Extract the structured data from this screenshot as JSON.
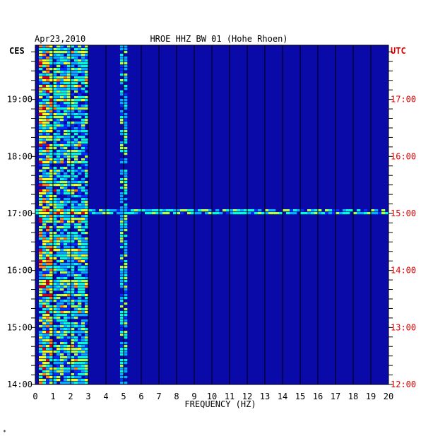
{
  "chart_data": {
    "type": "heatmap",
    "header_date": "Apr23,2010",
    "title": "HROE HHZ BW 01 (Hohe Rhoen)",
    "left_zone": "CES",
    "right_zone": "UTC",
    "xlabel": "FREQUENCY (HZ)",
    "xlim": [
      0,
      20
    ],
    "x_ticks": [
      "0",
      "1",
      "2",
      "3",
      "4",
      "5",
      "6",
      "7",
      "8",
      "9",
      "10",
      "11",
      "12",
      "13",
      "14",
      "15",
      "16",
      "17",
      "18",
      "19",
      "20"
    ],
    "left_time_ticks": [
      "14:00",
      "15:00",
      "16:00",
      "17:00",
      "18:00",
      "19:00"
    ],
    "right_time_ticks": [
      "12:00",
      "13:00",
      "14:00",
      "15:00",
      "16:00",
      "17:00"
    ],
    "time_range_local_hours": [
      14.0,
      19.95
    ],
    "colors": {
      "background": "#0a0aa8",
      "grid": "#000000",
      "left_labels": "#000000",
      "right_labels": "#e00000",
      "scale": [
        "#0000a0",
        "#0030ff",
        "#00b0ff",
        "#00ffd0",
        "#b0ff40",
        "#ffff00",
        "#ff8000",
        "#e00000"
      ]
    },
    "features": [
      {
        "name": "microseism band",
        "freq_range_hz": [
          0.2,
          1.0
        ],
        "intensity": "high"
      },
      {
        "name": "cultural noise band",
        "freq_range_hz": [
          1.0,
          3.0
        ],
        "intensity": "medium"
      },
      {
        "name": "harmonic line",
        "freq_hz": 5.0,
        "intensity": "medium"
      },
      {
        "name": "broadband event",
        "time_local": "17:00",
        "freq_range_hz": [
          0,
          20
        ],
        "intensity": "medium"
      }
    ],
    "footer_mark": "*"
  }
}
